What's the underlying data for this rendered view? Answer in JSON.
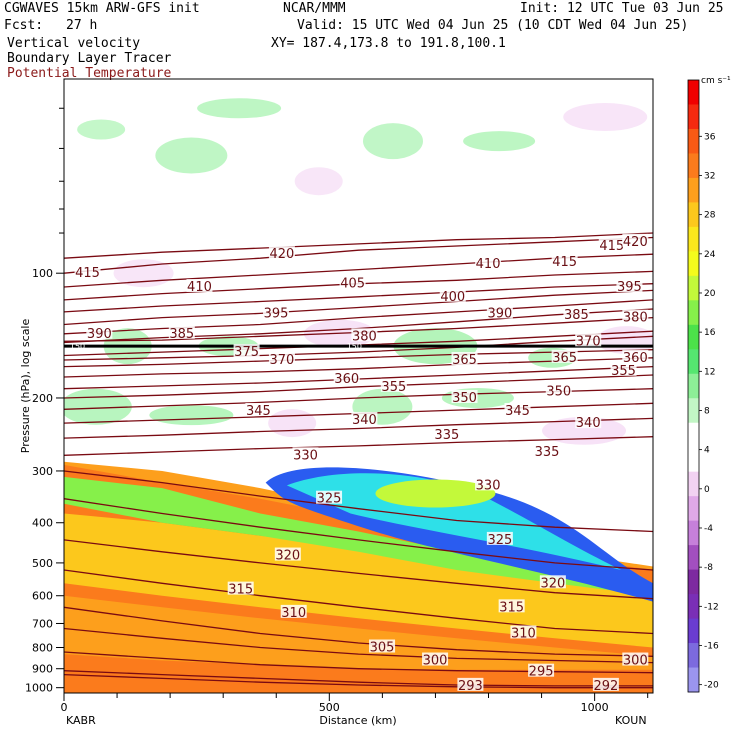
{
  "header": {
    "model": "CGWAVES 15km ARW-GFS init",
    "source": "NCAR/MMM",
    "init": "Init: 12 UTC Tue 03 Jun 25",
    "fcst_label": "Fcst:",
    "fcst_value": "27 h",
    "valid": "Valid: 15 UTC Wed 04 Jun 25 (10 CDT Wed 04 Jun 25)",
    "field1": "Vertical velocity",
    "field2": "Boundary Layer Tracer",
    "field3": "Potential Temperature",
    "xy": "XY= 187.4,173.8 to 191.8,100.1"
  },
  "colors": {
    "theta": "#7a0a12",
    "theta_label": "#6a0f14",
    "field3_text": "#8b1a1a"
  },
  "chart_data": {
    "type": "heatmap",
    "xlabel": "Distance (km)",
    "ylabel": "Pressure (hPa), log scale",
    "xlim": [
      0,
      1110
    ],
    "ylim_hpa": [
      1030,
      34
    ],
    "yscale": "log",
    "x_ticks": [
      0,
      500,
      1000
    ],
    "y_ticks": [
      100,
      200,
      300,
      400,
      500,
      600,
      700,
      800,
      900,
      1000
    ],
    "endpoints": {
      "left": "KABR",
      "right": "KOUN"
    },
    "marker_level": {
      "p": 150,
      "label": "150"
    },
    "colorbar": {
      "unit": "cm s⁻¹",
      "tick_labels": [
        "36",
        "32",
        "28",
        "24",
        "20",
        "16",
        "12",
        "8",
        "4",
        "0",
        "-4",
        "-8",
        "-12",
        "-16",
        "-20"
      ],
      "colors": [
        "#f00000",
        "#f52a10",
        "#f95a15",
        "#fb7b1c",
        "#fd9f1c",
        "#fcc81c",
        "#fbe71c",
        "#f4fb1c",
        "#c3f93a",
        "#86f04a",
        "#4ce24a",
        "#55e670",
        "#8def97",
        "#c2f6c5",
        "#ffffff",
        "#ffffff",
        "#f2d2f2",
        "#e0a9e8",
        "#c680da",
        "#a24fbf",
        "#7d2aa0",
        "#7a2fb6",
        "#6a3cd0",
        "#7c6ade",
        "#9b95ee"
      ]
    },
    "theta_contours": [
      {
        "label": "415",
        "p": [
          100,
          95,
          92,
          88,
          86,
          84,
          82
        ],
        "labels": [
          [
            0.04,
            100
          ],
          [
            0.85,
            94
          ],
          [
            0.93,
            86
          ]
        ]
      },
      {
        "label": "420",
        "p": [
          92,
          89,
          87,
          85,
          83,
          82,
          80
        ],
        "labels": [
          [
            0.37,
            90
          ],
          [
            1.02,
            84
          ]
        ]
      },
      {
        "label": "410",
        "p": [
          108,
          104,
          101,
          98,
          95,
          92,
          90
        ],
        "labels": [
          [
            0.23,
            108
          ],
          [
            0.72,
            95
          ]
        ]
      },
      {
        "label": "405",
        "p": [
          116,
          112,
          109,
          106,
          104,
          101,
          99
        ],
        "labels": [
          [
            0.49,
            106
          ]
        ]
      },
      {
        "label": "400",
        "p": [
          124,
          120,
          117,
          114,
          111,
          108,
          106
        ],
        "labels": [
          [
            0.66,
            114
          ]
        ]
      },
      {
        "label": "395",
        "p": [
          133,
          128,
          125,
          121,
          117,
          113,
          110
        ],
        "labels": [
          [
            0.36,
            125
          ],
          [
            0.96,
            108
          ]
        ]
      },
      {
        "label": "390",
        "p": [
          140,
          136,
          133,
          128,
          124,
          120,
          116
        ],
        "labels": [
          [
            0.06,
            140
          ],
          [
            0.74,
            125
          ]
        ]
      },
      {
        "label": "385",
        "p": [
          147,
          143,
          140,
          136,
          131,
          126,
          122
        ],
        "labels": [
          [
            0.2,
            140
          ],
          [
            0.87,
            126
          ]
        ]
      },
      {
        "label": "380",
        "p": [
          146,
          145,
          142,
          139,
          136,
          132,
          128
        ],
        "labels": [
          [
            0.51,
            142
          ],
          [
            1.01,
            128
          ]
        ]
      },
      {
        "label": "375",
        "p": [
          158,
          155,
          152,
          149,
          146,
          142,
          138
        ],
        "labels": [
          [
            0.31,
            155
          ]
        ]
      },
      {
        "label": "370",
        "p": [
          162,
          160,
          158,
          155,
          151,
          146,
          142
        ],
        "labels": [
          [
            0.37,
            162
          ],
          [
            0.89,
            146
          ]
        ]
      },
      {
        "label": "365",
        "p": [
          168,
          166,
          163,
          160,
          157,
          155,
          153
        ],
        "labels": [
          [
            0.68,
            162
          ],
          [
            0.85,
            160
          ]
        ]
      },
      {
        "label": "360",
        "p": [
          178,
          175,
          173,
          170,
          166,
          163,
          160
        ],
        "labels": [
          [
            0.48,
            180
          ],
          [
            1.06,
            160
          ]
        ]
      },
      {
        "label": "355",
        "p": [
          190,
          187,
          184,
          180,
          176,
          172,
          168
        ],
        "labels": [
          [
            0.56,
            188
          ],
          [
            0.95,
            172
          ]
        ]
      },
      {
        "label": "350",
        "p": [
          200,
          197,
          193,
          188,
          184,
          180,
          176
        ],
        "labels": [
          [
            0.68,
            200
          ],
          [
            0.84,
            193
          ]
        ]
      },
      {
        "label": "345",
        "p": [
          213,
          209,
          205,
          200,
          196,
          193,
          190
        ],
        "labels": [
          [
            0.33,
            215
          ],
          [
            0.77,
            215
          ]
        ]
      },
      {
        "label": "340",
        "p": [
          230,
          226,
          222,
          218,
          214,
          210,
          206
        ],
        "labels": [
          [
            0.51,
            226
          ],
          [
            0.89,
            230
          ]
        ]
      },
      {
        "label": "335",
        "p": [
          250,
          246,
          241,
          237,
          232,
          228,
          224
        ],
        "labels": [
          [
            0.65,
            246
          ],
          [
            0.82,
            270
          ]
        ]
      },
      {
        "label": "330",
        "p": [
          275,
          270,
          265,
          261,
          256,
          252,
          248
        ],
        "labels": [
          [
            0.41,
            275
          ],
          [
            0.72,
            325
          ]
        ]
      },
      {
        "label": "325",
        "p": [
          300,
          320,
          345,
          370,
          395,
          410,
          420
        ],
        "labels": [
          [
            0.45,
            350
          ],
          [
            0.74,
            440
          ]
        ]
      },
      {
        "label": "320",
        "p": [
          350,
          380,
          410,
          440,
          470,
          500,
          520
        ],
        "labels": [
          [
            0.38,
            480
          ],
          [
            0.83,
            560
          ]
        ]
      },
      {
        "label": "315",
        "p": [
          440,
          470,
          500,
          530,
          560,
          590,
          610
        ],
        "labels": [
          [
            0.3,
            580
          ],
          [
            0.76,
            640
          ]
        ]
      },
      {
        "label": "310",
        "p": [
          520,
          560,
          600,
          640,
          680,
          720,
          740
        ],
        "labels": [
          [
            0.39,
            660
          ],
          [
            0.78,
            740
          ]
        ]
      },
      {
        "label": "305",
        "p": [
          640,
          690,
          740,
          780,
          810,
          830,
          840
        ],
        "labels": [
          [
            0.54,
            800
          ]
        ]
      },
      {
        "label": "300",
        "p": [
          720,
          760,
          800,
          830,
          850,
          860,
          870
        ],
        "labels": [
          [
            0.63,
            860
          ],
          [
            1.07,
            860
          ]
        ]
      },
      {
        "label": "295",
        "p": [
          820,
          850,
          880,
          900,
          910,
          915,
          920
        ],
        "labels": [
          [
            0.81,
            915
          ]
        ]
      },
      {
        "label": "293",
        "p": [
          910,
          930,
          950,
          970,
          985,
          990,
          990
        ],
        "labels": [
          [
            0.69,
            990
          ]
        ]
      },
      {
        "label": "292",
        "p": [
          930,
          950,
          970,
          985,
          995,
          1000,
          1000
        ],
        "labels": [
          [
            0.92,
            990
          ]
        ]
      }
    ]
  }
}
